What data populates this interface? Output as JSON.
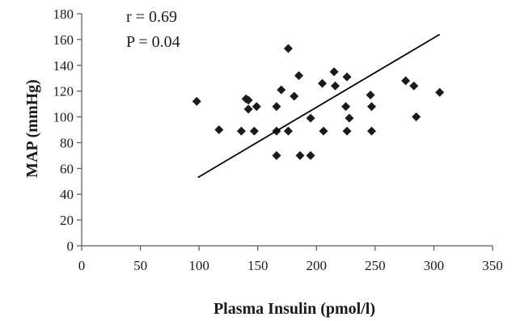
{
  "chart_data": {
    "type": "scatter",
    "xlabel": "Plasma Insulin (pmol/l)",
    "ylabel": "MAP (mmHg)",
    "xlim": [
      0,
      350
    ],
    "ylim": [
      0,
      180
    ],
    "x_ticks": [
      0,
      50,
      100,
      150,
      200,
      250,
      300,
      350
    ],
    "y_ticks": [
      0,
      20,
      40,
      60,
      80,
      100,
      120,
      140,
      160,
      180
    ],
    "grid": false,
    "annotations": [
      "r = 0.69",
      "P = 0.04"
    ],
    "marker": "diamond",
    "marker_color": "#1a1a1a",
    "points": [
      {
        "x": 98,
        "y": 112
      },
      {
        "x": 117,
        "y": 90
      },
      {
        "x": 136,
        "y": 89
      },
      {
        "x": 140,
        "y": 114
      },
      {
        "x": 142,
        "y": 113
      },
      {
        "x": 142,
        "y": 106
      },
      {
        "x": 147,
        "y": 89
      },
      {
        "x": 149,
        "y": 108
      },
      {
        "x": 166,
        "y": 108
      },
      {
        "x": 166,
        "y": 89
      },
      {
        "x": 166,
        "y": 70
      },
      {
        "x": 170,
        "y": 121
      },
      {
        "x": 176,
        "y": 89
      },
      {
        "x": 176,
        "y": 153
      },
      {
        "x": 181,
        "y": 116
      },
      {
        "x": 185,
        "y": 132
      },
      {
        "x": 186,
        "y": 70
      },
      {
        "x": 195,
        "y": 70
      },
      {
        "x": 195,
        "y": 99
      },
      {
        "x": 205,
        "y": 126
      },
      {
        "x": 206,
        "y": 89
      },
      {
        "x": 215,
        "y": 135
      },
      {
        "x": 216,
        "y": 124
      },
      {
        "x": 225,
        "y": 108
      },
      {
        "x": 226,
        "y": 89
      },
      {
        "x": 226,
        "y": 131
      },
      {
        "x": 228,
        "y": 99
      },
      {
        "x": 246,
        "y": 117
      },
      {
        "x": 247,
        "y": 108
      },
      {
        "x": 247,
        "y": 89
      },
      {
        "x": 276,
        "y": 128
      },
      {
        "x": 283,
        "y": 124
      },
      {
        "x": 285,
        "y": 100
      },
      {
        "x": 305,
        "y": 119
      }
    ],
    "trendline": {
      "x": [
        99,
        305
      ],
      "y": [
        53,
        164
      ]
    }
  }
}
